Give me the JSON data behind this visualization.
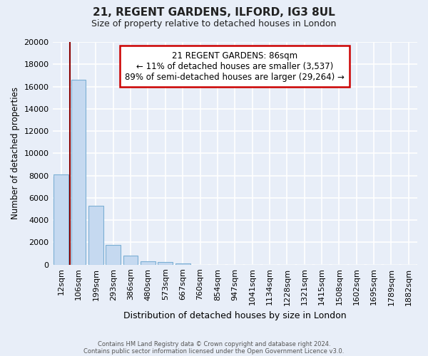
{
  "title": "21, REGENT GARDENS, ILFORD, IG3 8UL",
  "subtitle": "Size of property relative to detached houses in London",
  "xlabel": "Distribution of detached houses by size in London",
  "ylabel": "Number of detached properties",
  "bar_color": "#c5d9f0",
  "bar_edge_color": "#7bafd4",
  "annotation_box_color": "#ffffff",
  "annotation_box_edge": "#cc0000",
  "vertical_line_color": "#8b0000",
  "categories": [
    "12sqm",
    "106sqm",
    "199sqm",
    "293sqm",
    "386sqm",
    "480sqm",
    "573sqm",
    "667sqm",
    "760sqm",
    "854sqm",
    "947sqm",
    "1041sqm",
    "1134sqm",
    "1228sqm",
    "1321sqm",
    "1415sqm",
    "1508sqm",
    "1602sqm",
    "1695sqm",
    "1789sqm",
    "1882sqm"
  ],
  "values": [
    8100,
    16600,
    5300,
    1800,
    800,
    320,
    220,
    100,
    0,
    0,
    0,
    0,
    0,
    0,
    0,
    0,
    0,
    0,
    0,
    0,
    0
  ],
  "ylim": [
    0,
    20000
  ],
  "yticks": [
    0,
    2000,
    4000,
    6000,
    8000,
    10000,
    12000,
    14000,
    16000,
    18000,
    20000
  ],
  "annotation_title": "21 REGENT GARDENS: 86sqm",
  "annotation_line1": "← 11% of detached houses are smaller (3,537)",
  "annotation_line2": "89% of semi-detached houses are larger (29,264) →",
  "vertical_line_x": 0.5,
  "footnote1": "Contains HM Land Registry data © Crown copyright and database right 2024.",
  "footnote2": "Contains public sector information licensed under the Open Government Licence v3.0.",
  "background_color": "#e8eef8",
  "plot_background": "#e8eef8",
  "grid_color": "#ffffff"
}
